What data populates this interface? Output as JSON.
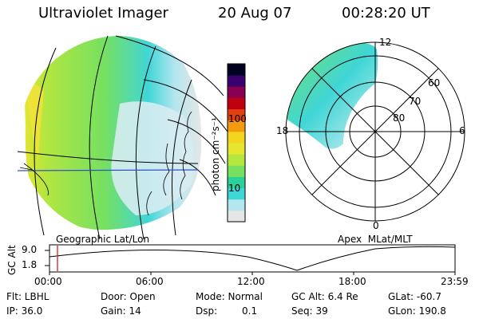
{
  "header": {
    "instrument": "Ultraviolet Imager",
    "date": "20 Aug 07",
    "time": "00:28:20 UT"
  },
  "colorbar": {
    "label": "photon cm⁻²s⁻¹",
    "ticks": [
      "100",
      "10"
    ],
    "colors": [
      "#e6e6e6",
      "#b4e6ef",
      "#40d6d6",
      "#2bcf9a",
      "#77e060",
      "#b4e640",
      "#e6e630",
      "#f3d41f",
      "#f39a0f",
      "#e04010",
      "#c00010",
      "#8a0050",
      "#3c006e",
      "#000020"
    ]
  },
  "left_panel": {
    "caption": "Geographic Lat/Lon"
  },
  "right_panel": {
    "caption": "Apex  MLat/MLT",
    "mlt_labels": [
      "12",
      "18",
      "6",
      "0"
    ],
    "lat_labels": [
      "60",
      "70",
      "80"
    ]
  },
  "altitude_plot": {
    "ylabel": "GC Alt",
    "yticks": [
      "9.0",
      "1.8"
    ],
    "xticks": [
      "00:00",
      "06:00",
      "12:00",
      "18:00",
      "23:59"
    ],
    "marker_time": "00:28:20"
  },
  "footer": {
    "filter": "Flt: LBHL",
    "door": "Door: Open",
    "mode": "Mode: Normal",
    "gc_alt": "GC Alt: 6.4 Re",
    "glat": "GLat: -60.7",
    "ip": "IP: 36.0",
    "gain": "Gain: 14",
    "dsp_label": "Dsp:",
    "dsp_value": "0.1",
    "seq": "Seq: 39",
    "glon": "GLon: 190.8"
  }
}
